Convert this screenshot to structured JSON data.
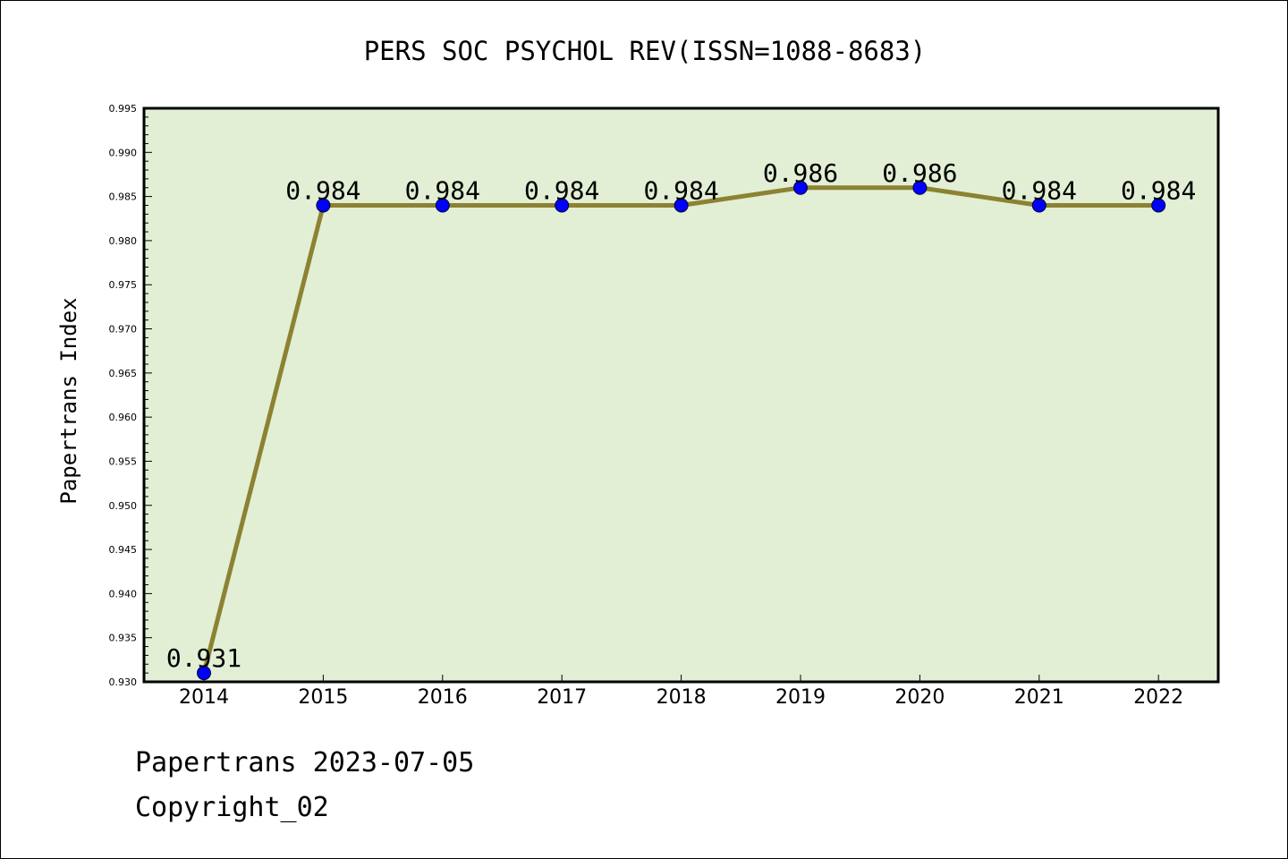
{
  "chart_data": {
    "type": "line",
    "title": "PERS SOC PSYCHOL REV(ISSN=1088-8683)",
    "xlabel": "",
    "ylabel": "Papertrans Index",
    "categories": [
      "2014",
      "2015",
      "2016",
      "2017",
      "2018",
      "2019",
      "2020",
      "2021",
      "2022"
    ],
    "series": [
      {
        "name": "Papertrans Index",
        "values": [
          0.931,
          0.984,
          0.984,
          0.984,
          0.984,
          0.986,
          0.986,
          0.984,
          0.984
        ],
        "data_labels": [
          "0.931",
          "0.984",
          "0.984",
          "0.984",
          "0.984",
          "0.986",
          "0.986",
          "0.984",
          "0.984"
        ]
      }
    ],
    "ylim": [
      0.93,
      0.995
    ],
    "yticks": [
      "0.930",
      "0.935",
      "0.940",
      "0.945",
      "0.950",
      "0.955",
      "0.960",
      "0.965",
      "0.970",
      "0.975",
      "0.980",
      "0.985",
      "0.990",
      "0.995"
    ],
    "grid": false,
    "legend": "none"
  },
  "colors": {
    "plot_background": "#e2efd5",
    "line": "#8c8232",
    "marker": "#0000ff",
    "axis": "#000000",
    "text": "#000000"
  },
  "footer": {
    "date_line": "Papertrans 2023-07-05",
    "copyright_line": "Copyright_02"
  }
}
